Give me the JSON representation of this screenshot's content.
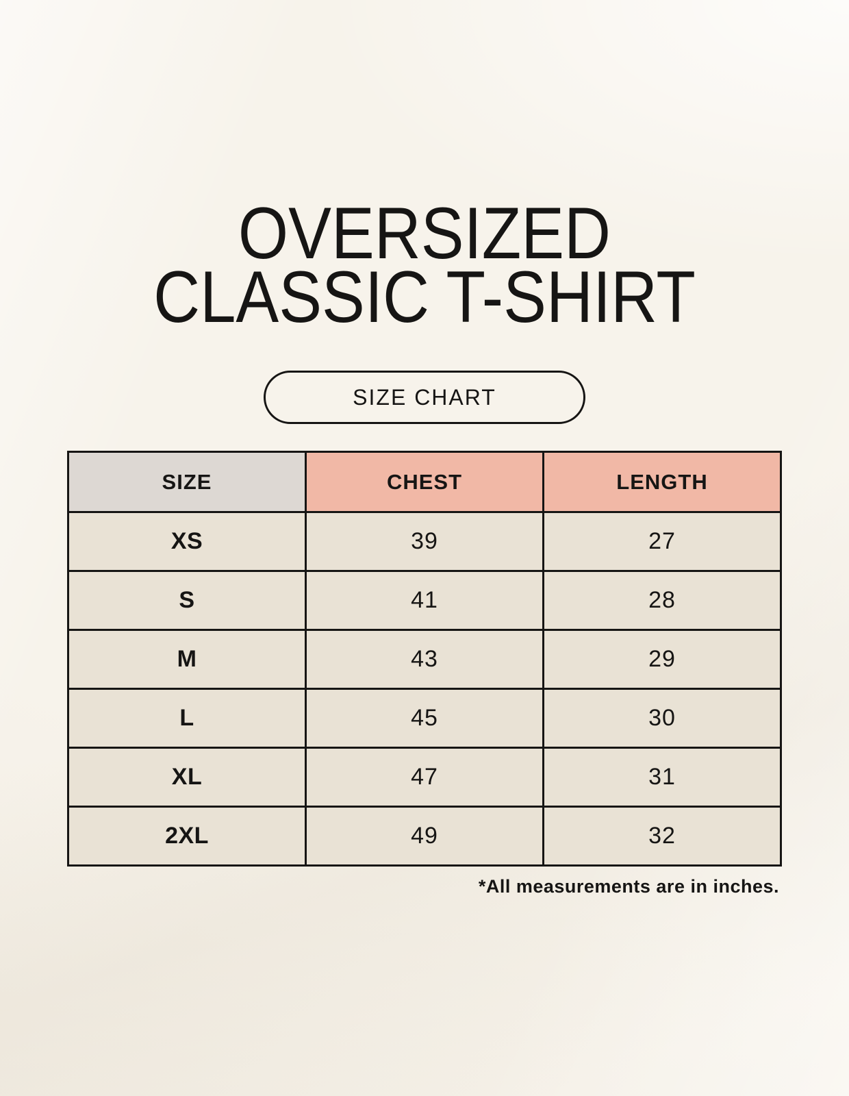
{
  "title": {
    "line1": "OVERSIZED",
    "line2": "CLASSIC T-SHIRT"
  },
  "button": {
    "label": "SIZE CHART"
  },
  "chart_data": {
    "type": "table",
    "title": "SIZE CHART",
    "columns": [
      "SIZE",
      "CHEST",
      "LENGTH"
    ],
    "rows": [
      [
        "XS",
        "39",
        "27"
      ],
      [
        "S",
        "41",
        "28"
      ],
      [
        "M",
        "43",
        "29"
      ],
      [
        "L",
        "45",
        "30"
      ],
      [
        "XL",
        "47",
        "31"
      ],
      [
        "2XL",
        "49",
        "32"
      ]
    ],
    "units": "inches"
  },
  "footnote": "*All measurements are in inches.",
  "colors": {
    "background": "#f7f3eb",
    "header_pink": "#f1b8a6",
    "header_gray": "#ddd8d3",
    "row_label_gray": "#dcd6d1",
    "cell_cream": "#e9e2d5",
    "border": "#161514",
    "text": "#161514"
  }
}
